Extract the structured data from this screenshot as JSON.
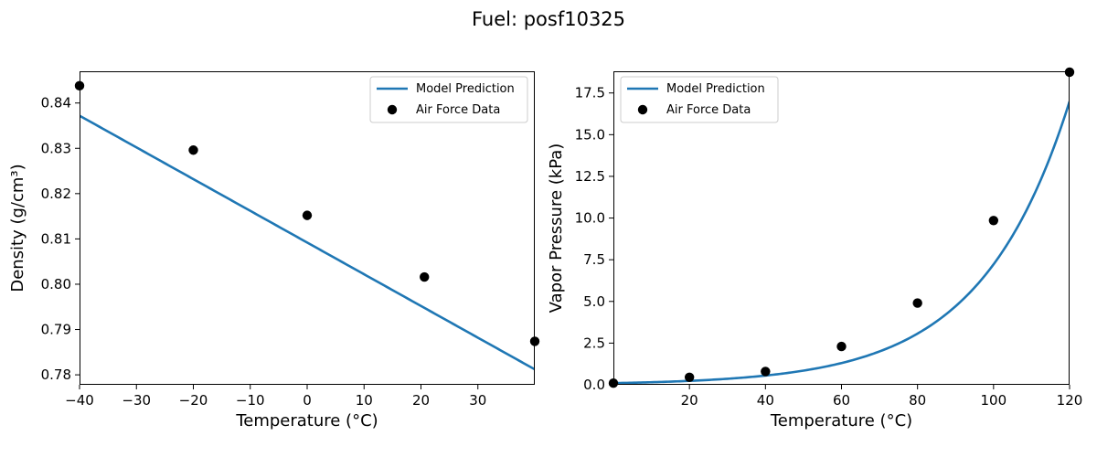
{
  "figure": {
    "title": "Fuel: posf10325"
  },
  "colors": {
    "model_line": "#1f77b4",
    "data_points": "#000000"
  },
  "chart_data": [
    {
      "type": "line+scatter",
      "xlabel": "Temperature (°C)",
      "ylabel": "Density (g/cm³)",
      "xlim": [
        -40,
        40
      ],
      "ylim": [
        0.7778,
        0.847
      ],
      "xticks": [
        -40,
        -30,
        -20,
        -10,
        0,
        10,
        20,
        30
      ],
      "yticks": [
        0.78,
        0.79,
        0.8,
        0.81,
        0.82,
        0.83,
        0.84
      ],
      "yticks_decimals": 2,
      "legend": {
        "location": "upper right",
        "entries": [
          "Model Prediction",
          "Air Force Data"
        ]
      },
      "series": [
        {
          "name": "Model Prediction",
          "kind": "line",
          "model": {
            "form": "linear",
            "x0": -40,
            "y0": 0.8372,
            "x1": 40,
            "y1": 0.7812
          }
        },
        {
          "name": "Air Force Data",
          "kind": "scatter",
          "x": [
            -40,
            -20,
            0,
            20.6,
            40
          ],
          "y": [
            0.8438,
            0.8296,
            0.8152,
            0.8016,
            0.7874
          ]
        }
      ]
    },
    {
      "type": "line+scatter",
      "xlabel": "Temperature (°C)",
      "ylabel": "Vapor Pressure (kPa)",
      "xlim": [
        0,
        120
      ],
      "ylim": [
        0,
        18.8
      ],
      "xticks": [
        20,
        40,
        60,
        80,
        100,
        120
      ],
      "yticks": [
        0.0,
        2.5,
        5.0,
        7.5,
        10.0,
        12.5,
        15.0,
        17.5
      ],
      "yticks_decimals": 1,
      "legend": {
        "location": "upper left",
        "entries": [
          "Model Prediction",
          "Air Force Data"
        ]
      },
      "series": [
        {
          "name": "Model Prediction",
          "kind": "line",
          "model": {
            "form": "exponential",
            "x0": 0,
            "y0": 0.1,
            "x1": 120,
            "y1": 17.0
          }
        },
        {
          "name": "Air Force Data",
          "kind": "scatter",
          "x": [
            0,
            20,
            40,
            60,
            80,
            100,
            120
          ],
          "y": [
            0.1,
            0.45,
            0.8,
            2.3,
            4.9,
            9.85,
            18.75
          ]
        }
      ]
    }
  ]
}
